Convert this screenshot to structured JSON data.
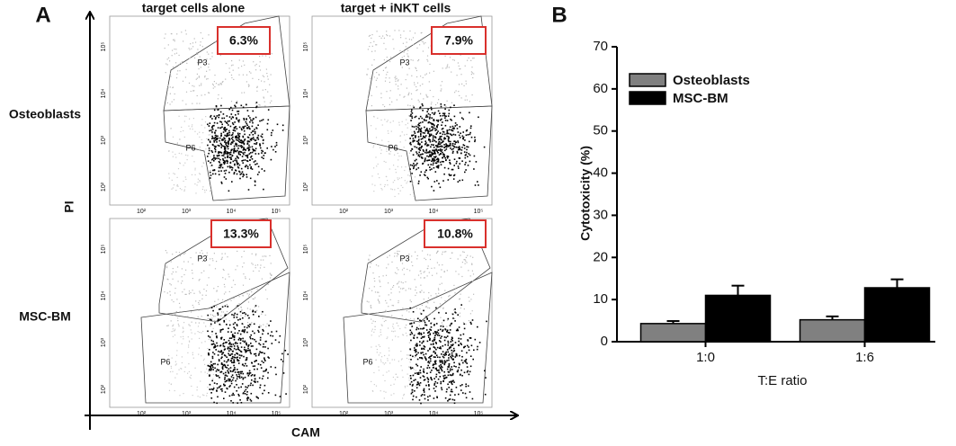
{
  "panel_a": {
    "label": "A",
    "column_titles": [
      "target cells alone",
      "target + iNKT cells"
    ],
    "row_labels": [
      "Osteoblasts",
      "MSC-BM"
    ],
    "y_label": "PI",
    "x_label": "CAM",
    "percentages": [
      [
        "6.3%",
        "7.9%"
      ],
      [
        "13.3%",
        "10.8%"
      ]
    ],
    "gate_labels": [
      "P3",
      "P6"
    ],
    "axis_tick_labels": [
      "10²",
      "10³",
      "10⁴",
      "10⁵"
    ]
  },
  "chart_data": {
    "type": "bar",
    "panel_label": "B",
    "x_label": "T:E ratio",
    "y_label": "Cytotoxicity (%)",
    "categories": [
      "1:0",
      "1:6"
    ],
    "series": [
      {
        "name": "Osteoblasts",
        "color": "#808080",
        "values": [
          4.3,
          5.2
        ],
        "errors": [
          0.6,
          0.8
        ]
      },
      {
        "name": "MSC-BM",
        "color": "#000000",
        "values": [
          11.0,
          12.8
        ],
        "errors": [
          2.3,
          2.0
        ]
      }
    ],
    "ylim": [
      0,
      70
    ],
    "yticks": [
      0,
      10,
      20,
      30,
      40,
      50,
      60,
      70
    ],
    "grid": false,
    "legend": "upper-left"
  }
}
